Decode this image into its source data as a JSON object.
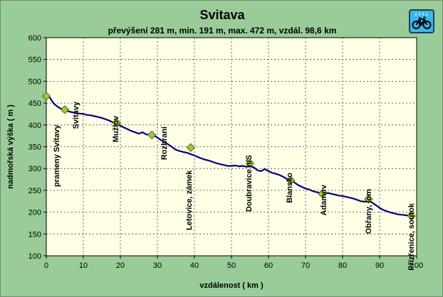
{
  "chart_data": {
    "type": "line",
    "title": "Svitava",
    "subtitle": "převýšení 281 m, min. 191 m, max. 472 m, vzdál. 98,6 km",
    "xlabel": "vzdálenost ( km )",
    "ylabel": "nadmořská výška ( m )",
    "xlim": [
      0,
      100
    ],
    "ylim": [
      100,
      600
    ],
    "x_ticks": [
      0,
      10,
      20,
      30,
      40,
      50,
      60,
      70,
      80,
      90,
      100
    ],
    "y_ticks": [
      100,
      150,
      200,
      250,
      300,
      350,
      400,
      450,
      500,
      550,
      600
    ],
    "grid": true,
    "series": [
      {
        "color": "#000080",
        "points": [
          [
            0,
            468
          ],
          [
            1,
            462
          ],
          [
            2,
            449
          ],
          [
            3,
            442
          ],
          [
            4,
            437
          ],
          [
            5,
            434
          ],
          [
            6,
            431
          ],
          [
            7,
            429
          ],
          [
            8,
            427
          ],
          [
            9,
            426
          ],
          [
            10,
            425
          ],
          [
            11,
            423
          ],
          [
            12,
            422
          ],
          [
            13,
            420
          ],
          [
            14,
            418
          ],
          [
            15,
            416
          ],
          [
            16,
            413
          ],
          [
            17,
            410
          ],
          [
            18,
            406
          ],
          [
            19,
            403
          ],
          [
            20,
            398
          ],
          [
            21,
            394
          ],
          [
            22,
            390
          ],
          [
            23,
            386
          ],
          [
            24,
            383
          ],
          [
            25,
            380
          ],
          [
            26,
            383
          ],
          [
            27,
            378
          ],
          [
            28,
            378
          ],
          [
            29,
            376
          ],
          [
            30,
            371
          ],
          [
            31,
            365
          ],
          [
            32,
            360
          ],
          [
            33,
            355
          ],
          [
            34,
            349
          ],
          [
            35,
            343
          ],
          [
            36,
            340
          ],
          [
            37,
            338
          ],
          [
            38,
            336
          ],
          [
            39,
            333
          ],
          [
            40,
            330
          ],
          [
            41,
            326
          ],
          [
            42,
            323
          ],
          [
            43,
            320
          ],
          [
            44,
            318
          ],
          [
            45,
            315
          ],
          [
            46,
            312
          ],
          [
            47,
            310
          ],
          [
            48,
            308
          ],
          [
            49,
            306
          ],
          [
            50,
            306
          ],
          [
            51,
            307
          ],
          [
            52,
            305
          ],
          [
            53,
            306
          ],
          [
            54,
            304
          ],
          [
            55,
            305
          ],
          [
            56,
            303
          ],
          [
            57,
            296
          ],
          [
            58,
            294
          ],
          [
            59,
            299
          ],
          [
            60,
            294
          ],
          [
            61,
            290
          ],
          [
            62,
            288
          ],
          [
            63,
            285
          ],
          [
            64,
            281
          ],
          [
            65,
            276
          ],
          [
            66,
            272
          ],
          [
            67,
            268
          ],
          [
            68,
            262
          ],
          [
            69,
            258
          ],
          [
            70,
            254
          ],
          [
            71,
            252
          ],
          [
            72,
            248
          ],
          [
            73,
            246
          ],
          [
            74,
            244
          ],
          [
            75,
            242
          ],
          [
            76,
            244
          ],
          [
            77,
            242
          ],
          [
            78,
            240
          ],
          [
            79,
            238
          ],
          [
            80,
            237
          ],
          [
            81,
            235
          ],
          [
            82,
            233
          ],
          [
            83,
            231
          ],
          [
            84,
            228
          ],
          [
            85,
            225
          ],
          [
            86,
            224
          ],
          [
            87,
            227
          ],
          [
            88,
            222
          ],
          [
            89,
            216
          ],
          [
            90,
            210
          ],
          [
            91,
            205
          ],
          [
            92,
            202
          ],
          [
            93,
            199
          ],
          [
            94,
            197
          ],
          [
            95,
            195
          ],
          [
            96,
            194
          ],
          [
            97,
            193
          ],
          [
            98,
            192
          ],
          [
            98.6,
            191
          ]
        ]
      }
    ],
    "markers": [
      {
        "name": "prameny Svitavy",
        "x": 0,
        "y": 466
      },
      {
        "name": "Svitavy",
        "x": 5,
        "y": 435
      },
      {
        "name": "Mužlov",
        "x": 19,
        "y": 405
      },
      {
        "name": "Rozhraní",
        "x": 28.5,
        "y": 377
      },
      {
        "name": "Letovice, zámek",
        "x": 39,
        "y": 348
      },
      {
        "name": "Doubravice n/S",
        "x": 55,
        "y": 312
      },
      {
        "name": "Blansko",
        "x": 66,
        "y": 273
      },
      {
        "name": "Adamov",
        "x": 74.5,
        "y": 242
      },
      {
        "name": "Obřany, Iom",
        "x": 87,
        "y": 230
      },
      {
        "name": "Přízřenice, soutok",
        "x": 98.6,
        "y": 191
      }
    ],
    "colors": {
      "background": "#99cc99",
      "plot_background": "#ffffe6",
      "line": "#000080",
      "marker_fill": "#99cc33",
      "marker_stroke": "#4d6619",
      "grid": "#404040"
    }
  },
  "badge": {
    "icon": "bicycle-icon"
  }
}
